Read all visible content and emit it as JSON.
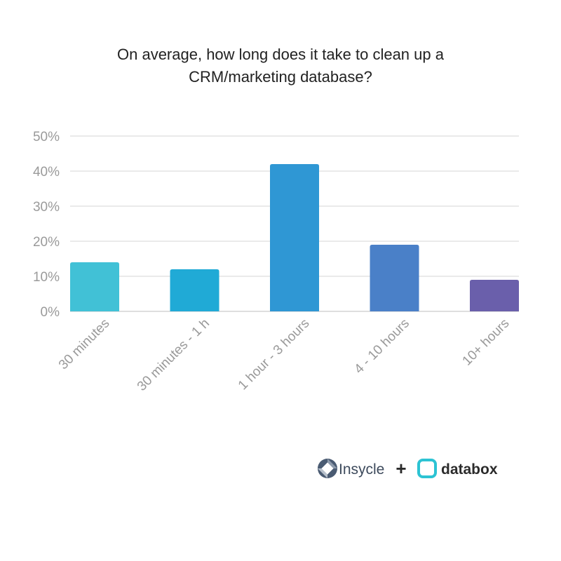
{
  "title_lines": [
    "On average, how long does it take to clean up a",
    "CRM/marketing database?"
  ],
  "chart_data": {
    "type": "bar",
    "title": "On average, how long does it take to clean up a CRM/marketing database?",
    "categories": [
      "30 minutes",
      "30 minutes - 1 h",
      "1 hour - 3 hours",
      "4 - 10 hours",
      "10+ hours"
    ],
    "values": [
      14,
      12,
      42,
      19,
      9
    ],
    "unit": "%",
    "ylim": [
      0,
      50
    ],
    "yticks": [
      "0%",
      "10%",
      "20%",
      "30%",
      "40%",
      "50%"
    ],
    "grid": true,
    "bar_colors": [
      "#41c1d6",
      "#20aad6",
      "#2f97d4",
      "#4a80c8",
      "#6a5fab"
    ]
  },
  "logos": {
    "left_name": "Insycle",
    "plus": "+",
    "right_name": "databox",
    "left_icon_color": "#4a5b72",
    "right_icon_color": "#2cc3d3"
  }
}
